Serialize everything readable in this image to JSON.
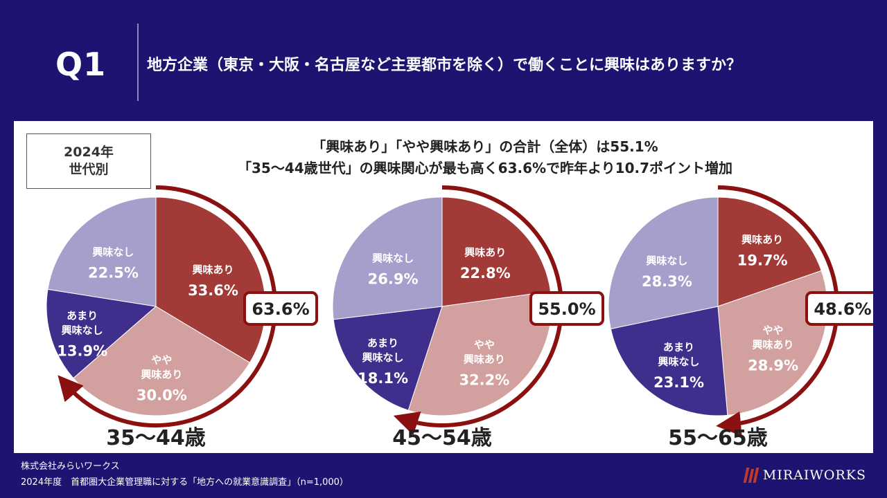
{
  "header": {
    "q_label": "Q1",
    "question": "地方企業（東京・大阪・名古屋など主要都市を除く）で働くことに興味はありますか？"
  },
  "year_box": {
    "line1": "2024年",
    "line2": "世代別"
  },
  "headline": {
    "line1": "「興味あり」「やや興味あり」の合計（全体）は55.1%",
    "line2": "「35～44歳世代」の興味関心が最も高く63.6%で昨年より10.7ポイント増加"
  },
  "colors": {
    "interest": "#a23a38",
    "somewhat": "#d2a19f",
    "little": "#3f2e8c",
    "none": "#a49fcb",
    "arrow": "#8b1010"
  },
  "chart_data": [
    {
      "type": "pie",
      "title": "35～44歳",
      "slices": [
        {
          "label": "興味あり",
          "value": 33.6,
          "value_label": "33.6%",
          "color": "#a23a38"
        },
        {
          "label": "やや\n興味あり",
          "value": 30.0,
          "value_label": "30.0%",
          "color": "#d2a19f"
        },
        {
          "label": "あまり\n興味なし",
          "value": 13.9,
          "value_label": "13.9%",
          "color": "#3f2e8c"
        },
        {
          "label": "興味なし",
          "value": 22.5,
          "value_label": "22.5%",
          "color": "#a49fcb"
        }
      ],
      "total_label": "63.6%"
    },
    {
      "type": "pie",
      "title": "45～54歳",
      "slices": [
        {
          "label": "興味あり",
          "value": 22.8,
          "value_label": "22.8%",
          "color": "#a23a38"
        },
        {
          "label": "やや\n興味あり",
          "value": 32.2,
          "value_label": "32.2%",
          "color": "#d2a19f"
        },
        {
          "label": "あまり\n興味なし",
          "value": 18.1,
          "value_label": "18.1%",
          "color": "#3f2e8c"
        },
        {
          "label": "興味なし",
          "value": 26.9,
          "value_label": "26.9%",
          "color": "#a49fcb"
        }
      ],
      "total_label": "55.0%"
    },
    {
      "type": "pie",
      "title": "55～65歳",
      "slices": [
        {
          "label": "興味あり",
          "value": 19.7,
          "value_label": "19.7%",
          "color": "#a23a38"
        },
        {
          "label": "やや\n興味あり",
          "value": 28.9,
          "value_label": "28.9%",
          "color": "#d2a19f"
        },
        {
          "label": "あまり\n興味なし",
          "value": 23.1,
          "value_label": "23.1%",
          "color": "#3f2e8c"
        },
        {
          "label": "興味なし",
          "value": 28.3,
          "value_label": "28.3%",
          "color": "#a49fcb"
        }
      ],
      "total_label": "48.6%"
    }
  ],
  "footer": {
    "company": "株式会社みらいワークス",
    "survey": "2024年度　首都圏大企業管理職に対する「地方への就業意識調査」（n=1,000）",
    "logo": "MIRAIWORKS"
  }
}
